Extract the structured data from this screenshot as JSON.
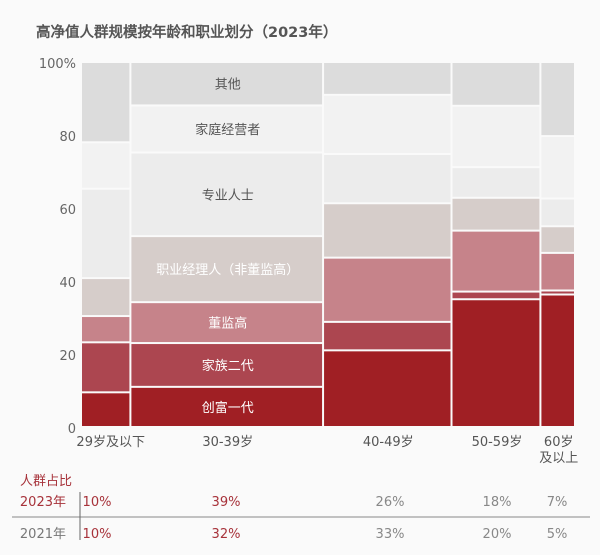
{
  "chart_data": {
    "type": "mekko",
    "title": "高净值人群规模按年龄和职业划分（2023年）",
    "ylim": [
      0,
      100
    ],
    "yticks": [
      "0",
      "20",
      "40",
      "60",
      "80",
      "100%"
    ],
    "categories": [
      "29岁及以下",
      "30-39岁",
      "40-49岁",
      "50-59岁",
      "60岁\n及以上"
    ],
    "category_widths_pct_2023": [
      10,
      39,
      26,
      18,
      7
    ],
    "series": [
      {
        "name": "创富一代",
        "values": [
          9.5,
          11,
          21,
          35,
          36.3
        ],
        "color": "#a01f24",
        "label_color": "#ffffff"
      },
      {
        "name": "家族二代",
        "values": [
          13.7,
          12,
          7.8,
          2.1,
          1.1
        ],
        "color": "#ac4650",
        "label_color": "#ffffff"
      },
      {
        "name": "董监高",
        "values": [
          7.2,
          11.2,
          17.6,
          16.7,
          10.3
        ],
        "color": "#c6838a",
        "label_color": "#ffffff"
      },
      {
        "name": "职业经理人（非董监高）",
        "values": [
          10.4,
          18.1,
          14.9,
          9,
          7.3
        ],
        "color": "#d6cdca",
        "label_color": "#ffffff"
      },
      {
        "name": "专业人士",
        "values": [
          24.5,
          22.9,
          13.5,
          8.4,
          7.6
        ],
        "color": "#ececec",
        "label_color": "#555555"
      },
      {
        "name": "家庭经营者",
        "values": [
          12.7,
          12.9,
          16.2,
          16.8,
          17.1
        ],
        "color": "#f2f2f2",
        "label_color": "#555555"
      },
      {
        "name": "其他",
        "values": [
          22,
          11.9,
          9,
          12,
          20.3
        ],
        "color": "#dcdcdc",
        "label_color": "#555555"
      }
    ],
    "labels_in_category": 1
  },
  "table": {
    "header": "人群占比",
    "rows": [
      {
        "year": "2023年",
        "values": [
          "10%",
          "39%",
          "26%",
          "18%",
          "7%"
        ]
      },
      {
        "year": "2021年",
        "values": [
          "10%",
          "32%",
          "33%",
          "20%",
          "5%"
        ]
      }
    ]
  },
  "colors": {
    "accent": "#a7323a",
    "text": "#555555",
    "muted": "#777777"
  }
}
